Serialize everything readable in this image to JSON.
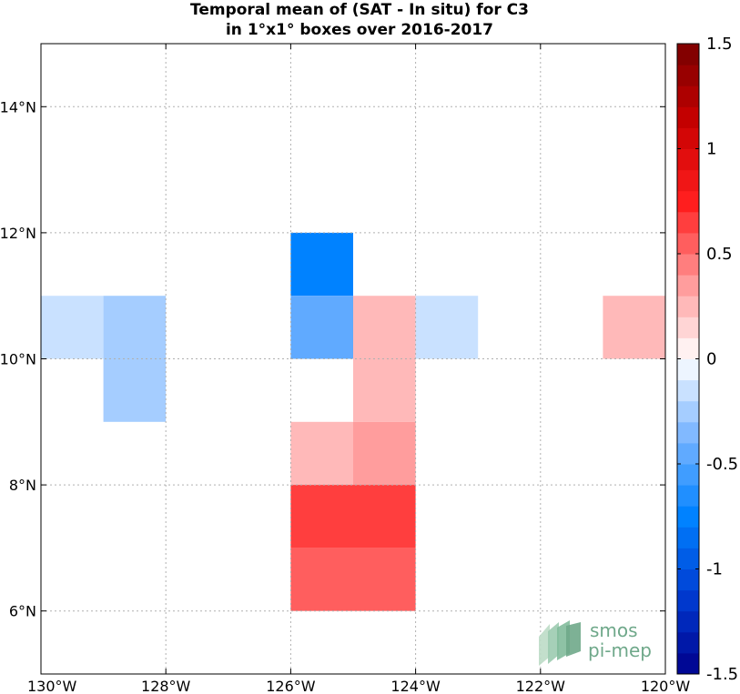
{
  "chart_data": {
    "type": "heatmap",
    "title": [
      "Temporal mean of (SAT - In situ) for C3",
      "in 1°x1° boxes over 2016-2017"
    ],
    "xlabel": "",
    "ylabel": "",
    "xlim": [
      -130,
      -120
    ],
    "ylim": [
      5,
      15
    ],
    "grid": true,
    "x_ticks": [
      {
        "value": -130,
        "label": "130°W"
      },
      {
        "value": -128,
        "label": "128°W"
      },
      {
        "value": -126,
        "label": "126°W"
      },
      {
        "value": -124,
        "label": "124°W"
      },
      {
        "value": -122,
        "label": "122°W"
      },
      {
        "value": -120,
        "label": "120°W"
      }
    ],
    "y_ticks": [
      {
        "value": 6,
        "label": "6°N"
      },
      {
        "value": 8,
        "label": "8°N"
      },
      {
        "value": 10,
        "label": "10°N"
      },
      {
        "value": 12,
        "label": "12°N"
      },
      {
        "value": 14,
        "label": "14°N"
      }
    ],
    "colorbar": {
      "range": [
        -1.5,
        1.5
      ],
      "levels": 30,
      "ticks": [
        {
          "value": 1.5,
          "label": "1.5"
        },
        {
          "value": 1,
          "label": "1"
        },
        {
          "value": 0.5,
          "label": "0.5"
        },
        {
          "value": 0,
          "label": "0"
        },
        {
          "value": -0.5,
          "label": "-0.5"
        },
        {
          "value": -1,
          "label": "-1"
        },
        {
          "value": -1.5,
          "label": "-1.5"
        }
      ]
    },
    "cells": [
      {
        "lon": -130,
        "lat": 10,
        "value": -0.15
      },
      {
        "lon": -129,
        "lat": 10,
        "value": -0.25
      },
      {
        "lon": -129,
        "lat": 9,
        "value": -0.25
      },
      {
        "lon": -126,
        "lat": 11,
        "value": -0.75
      },
      {
        "lon": -126,
        "lat": 10,
        "value": -0.45
      },
      {
        "lon": -125,
        "lat": 10,
        "value": 0.25
      },
      {
        "lon": -124,
        "lat": 10,
        "value": -0.15
      },
      {
        "lon": -121,
        "lat": 10,
        "value": 0.25
      },
      {
        "lon": -125,
        "lat": 9,
        "value": 0.25
      },
      {
        "lon": -126,
        "lat": 8,
        "value": 0.25
      },
      {
        "lon": -125,
        "lat": 8,
        "value": 0.35
      },
      {
        "lon": -126,
        "lat": 7,
        "value": 0.65
      },
      {
        "lon": -125,
        "lat": 7,
        "value": 0.65
      },
      {
        "lon": -126,
        "lat": 6,
        "value": 0.55
      },
      {
        "lon": -125,
        "lat": 6,
        "value": 0.55
      }
    ]
  },
  "logo": {
    "line1": "smos",
    "line2": "pi-mep",
    "color": "#6fa88a"
  }
}
